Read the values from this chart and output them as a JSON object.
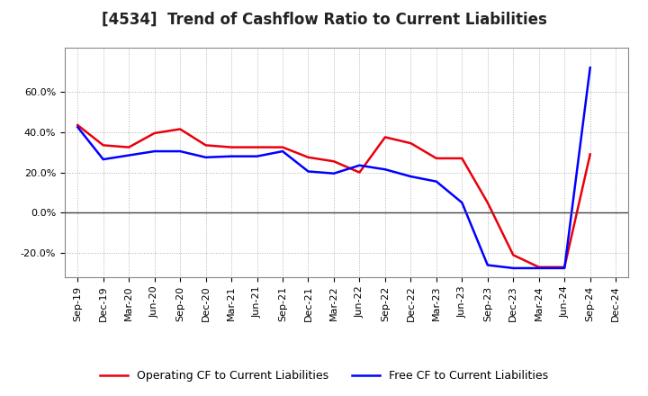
{
  "title": "[4534]  Trend of Cashflow Ratio to Current Liabilities",
  "x_labels": [
    "Sep-19",
    "Dec-19",
    "Mar-20",
    "Jun-20",
    "Sep-20",
    "Dec-20",
    "Mar-21",
    "Jun-21",
    "Sep-21",
    "Dec-21",
    "Mar-22",
    "Jun-22",
    "Sep-22",
    "Dec-22",
    "Mar-23",
    "Jun-23",
    "Sep-23",
    "Dec-23",
    "Mar-24",
    "Jun-24",
    "Sep-24",
    "Dec-24"
  ],
  "operating_cf": [
    0.435,
    0.335,
    0.325,
    0.395,
    0.415,
    0.335,
    0.325,
    0.325,
    0.325,
    0.275,
    0.255,
    0.2,
    0.375,
    0.345,
    0.27,
    0.27,
    0.05,
    -0.21,
    -0.27,
    -0.27,
    0.29,
    null
  ],
  "free_cf": [
    0.425,
    0.265,
    0.285,
    0.305,
    0.305,
    0.275,
    0.28,
    0.28,
    0.305,
    0.205,
    0.195,
    0.235,
    0.215,
    0.18,
    0.155,
    0.05,
    -0.26,
    -0.275,
    -0.275,
    -0.275,
    0.72,
    null
  ],
  "operating_color": "#e8000d",
  "free_color": "#0000ff",
  "ylim": [
    -0.32,
    0.82
  ],
  "yticks": [
    -0.2,
    0.0,
    0.2,
    0.4,
    0.6
  ],
  "background_color": "#ffffff",
  "grid_color": "#b0b0b0",
  "legend_op": "Operating CF to Current Liabilities",
  "legend_fr": "Free CF to Current Liabilities",
  "title_fontsize": 12,
  "tick_fontsize": 8
}
